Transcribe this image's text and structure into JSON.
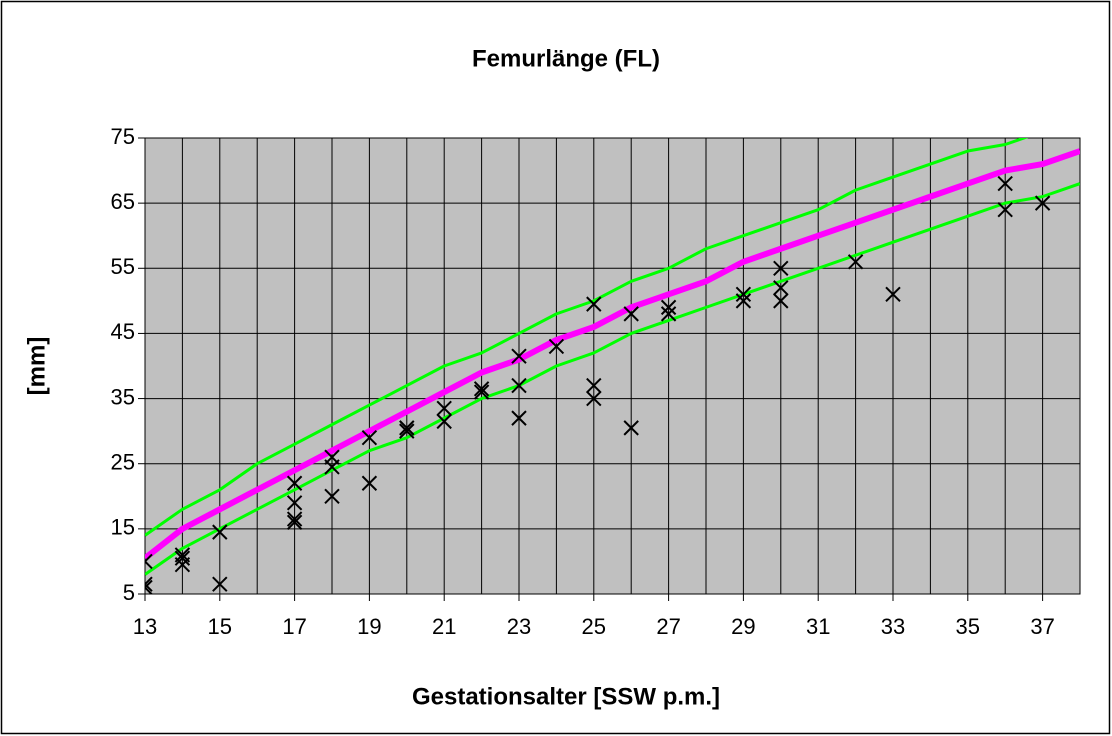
{
  "chart_data": {
    "type": "line",
    "title": "Femurlänge (FL)",
    "x_label": "Gestationsalter [SSW p.m.]",
    "y_label": "[mm]",
    "x": [
      13,
      14,
      15,
      16,
      17,
      18,
      19,
      20,
      21,
      22,
      23,
      24,
      25,
      26,
      27,
      28,
      29,
      30,
      31,
      32,
      33,
      34,
      35,
      36,
      37,
      38
    ],
    "series": [
      {
        "color": "#00ff00",
        "values": [
          14,
          18,
          21,
          25,
          28,
          31,
          34,
          37,
          40,
          42,
          45,
          48,
          50,
          53,
          55,
          58,
          60,
          62,
          64,
          67,
          69,
          71,
          73,
          74,
          76,
          78
        ]
      },
      {
        "color": "#00ff00",
        "values": [
          8,
          12,
          15,
          18,
          21,
          24,
          27,
          29,
          32,
          35,
          37,
          40,
          42,
          45,
          47,
          49,
          51,
          53,
          55,
          57,
          59,
          61,
          63,
          65,
          66,
          68
        ]
      },
      {
        "color": "#ff00ff",
        "values": [
          10.5,
          15,
          18,
          21,
          24,
          27,
          30,
          33,
          36,
          39,
          41,
          44,
          46,
          49,
          51,
          53,
          56,
          58,
          60,
          62,
          64,
          66,
          68,
          70,
          71,
          73
        ]
      }
    ],
    "points": {
      "color": "#000000",
      "x": [
        13,
        13,
        13,
        14,
        14,
        14,
        15,
        15,
        17,
        17,
        17,
        17,
        18,
        18,
        18,
        19,
        19,
        20,
        20,
        21,
        21,
        22,
        22,
        23,
        23,
        23,
        24,
        25,
        25,
        25,
        26,
        26,
        27,
        27,
        29,
        29,
        30,
        30,
        30,
        32,
        33,
        36,
        36,
        37
      ],
      "y": [
        6,
        6.5,
        10,
        11,
        10.5,
        9.5,
        14.5,
        6.5,
        22,
        19,
        16.5,
        16,
        26,
        24.5,
        20,
        29,
        22,
        30.5,
        30,
        33.5,
        31.5,
        36.5,
        36,
        41.5,
        37,
        32,
        43,
        49.5,
        37,
        35,
        48,
        30.5,
        49,
        48,
        51,
        50,
        55,
        52,
        50,
        56,
        51,
        68,
        64,
        65
      ]
    },
    "xlim": [
      13,
      38
    ],
    "xticks": [
      13,
      15,
      17,
      19,
      21,
      23,
      25,
      27,
      29,
      31,
      33,
      35,
      37
    ],
    "xgrid_step": 1,
    "ylim": [
      5,
      75
    ],
    "yticks": [
      5,
      15,
      25,
      35,
      45,
      55,
      65,
      75
    ],
    "plot_background": "#c0c0c0",
    "grid": true
  }
}
